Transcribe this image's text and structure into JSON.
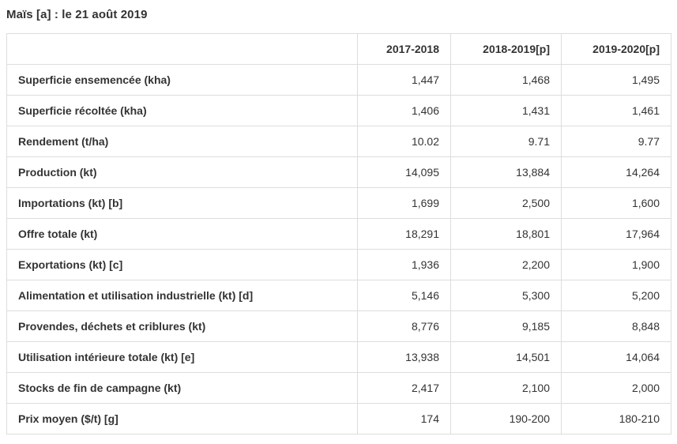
{
  "page": {
    "title": "Maïs [a] : le 21 août 2019"
  },
  "chart_data": {
    "type": "table",
    "title": "Maïs [a] : le 21 août 2019",
    "column_headers": [
      "2017-2018",
      "2018-2019[p]",
      "2019-2020[p]"
    ],
    "rows": [
      {
        "label": "Superficie ensemencée (kha)",
        "values": [
          "1,447",
          "1,468",
          "1,495"
        ]
      },
      {
        "label": "Superficie récoltée (kha)",
        "values": [
          "1,406",
          "1,431",
          "1,461"
        ]
      },
      {
        "label": "Rendement (t/ha)",
        "values": [
          "10.02",
          "9.71",
          "9.77"
        ]
      },
      {
        "label": "Production (kt)",
        "values": [
          "14,095",
          "13,884",
          "14,264"
        ]
      },
      {
        "label": "Importations (kt) [b]",
        "values": [
          "1,699",
          "2,500",
          "1,600"
        ]
      },
      {
        "label": "Offre totale (kt)",
        "values": [
          "18,291",
          "18,801",
          "17,964"
        ]
      },
      {
        "label": "Exportations (kt) [c]",
        "values": [
          "1,936",
          "2,200",
          "1,900"
        ]
      },
      {
        "label": "Alimentation et utilisation industrielle (kt) [d]",
        "values": [
          "5,146",
          "5,300",
          "5,200"
        ]
      },
      {
        "label": "Provendes, déchets et criblures (kt)",
        "values": [
          "8,776",
          "9,185",
          "8,848"
        ]
      },
      {
        "label": "Utilisation intérieure totale (kt) [e]",
        "values": [
          "13,938",
          "14,501",
          "14,064"
        ]
      },
      {
        "label": "Stocks de fin de campagne (kt)",
        "values": [
          "2,417",
          "2,100",
          "2,000"
        ]
      },
      {
        "label": "Prix moyen ($/t) [g]",
        "values": [
          "174",
          "190-200",
          "180-210"
        ]
      }
    ]
  }
}
